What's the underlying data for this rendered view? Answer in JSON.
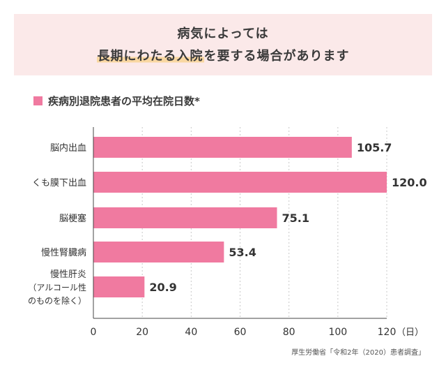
{
  "banner": {
    "line1": "病気によっては",
    "line2_highlight": "長期にわたる入院",
    "line2_rest": "を要する場合があります"
  },
  "chart_title": "疾病別退院患者の平均在院日数*",
  "source": "厚生労働省「令和2年（2020）患者調査」",
  "colors": {
    "bar": "#f07aa0",
    "banner_bg": "#fbe9e9",
    "highlight": "#f9d7a1"
  },
  "chart_data": {
    "type": "bar",
    "orientation": "horizontal",
    "title": "疾病別退院患者の平均在院日数*",
    "categories": [
      [
        "脳内出血"
      ],
      [
        "くも膜下出血"
      ],
      [
        "脳梗塞"
      ],
      [
        "慢性腎臓病"
      ],
      [
        "慢性肝炎",
        "（アルコール性",
        "のものを除く）"
      ]
    ],
    "values": [
      105.7,
      120.0,
      75.1,
      53.4,
      20.9
    ],
    "value_labels": [
      "105.7",
      "120.0",
      "75.1",
      "53.4",
      "20.9"
    ],
    "xlim": [
      0,
      120
    ],
    "xticks": [
      0,
      20,
      40,
      60,
      80,
      100,
      120
    ],
    "xunit": "（日）",
    "grid": "vertical-dotted"
  }
}
